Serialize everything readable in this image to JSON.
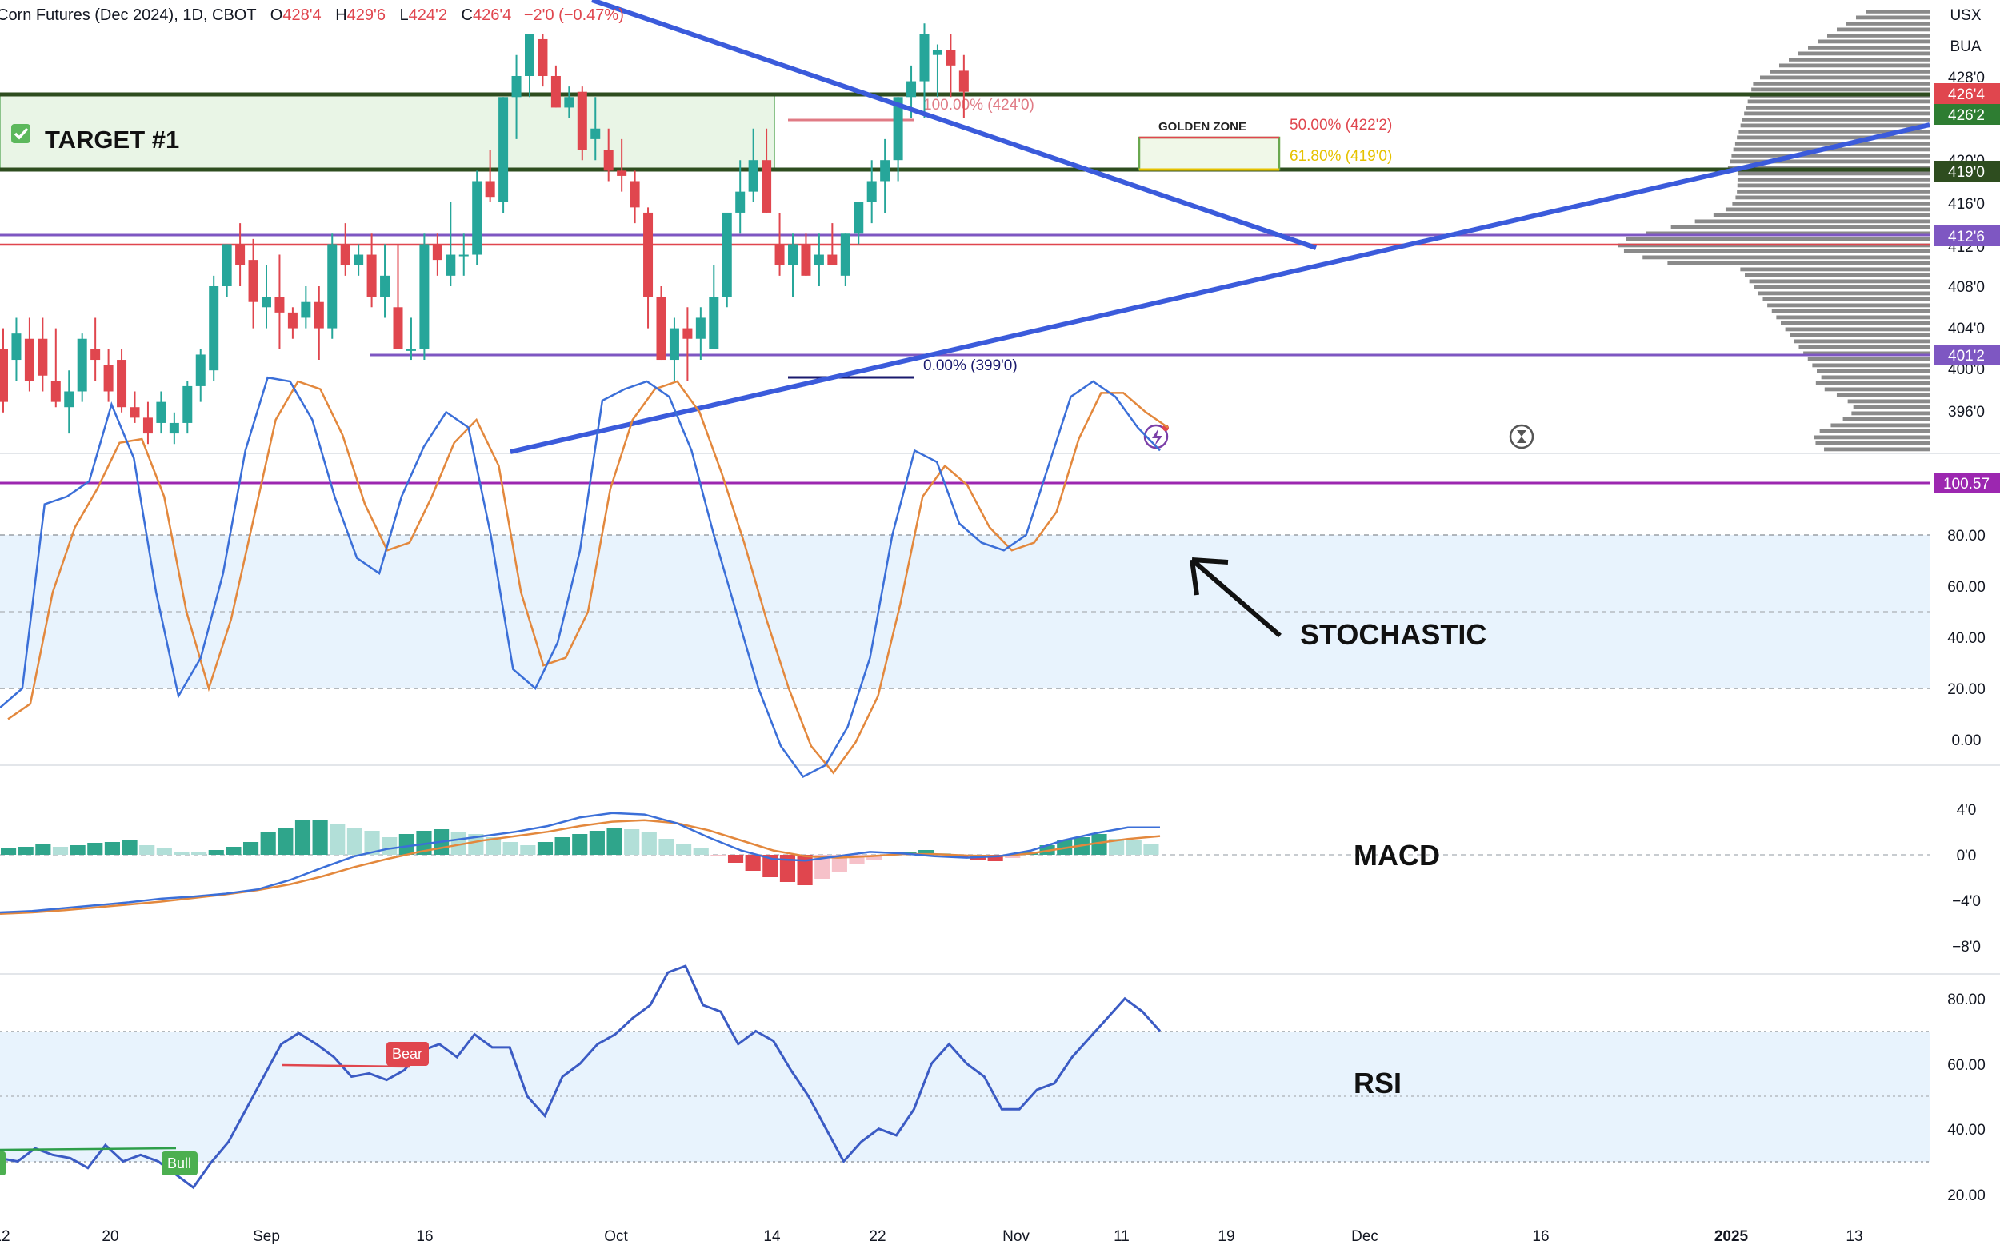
{
  "header": {
    "symbol": "Corn Futures (Dec 2024), 1D, CBOT",
    "o_label": "O",
    "o_val": "428'4",
    "h_label": "H",
    "h_val": "429'6",
    "l_label": "L",
    "l_val": "424'2",
    "c_label": "C",
    "c_val": "426'4",
    "change": "−2'0 (−0.47%)"
  },
  "scale_labels": {
    "currency": "USX",
    "unit": "BUA"
  },
  "price_axis": {
    "ticks": [
      "428'0",
      "420'0",
      "416'0",
      "412'0",
      "408'0",
      "404'0",
      "400'0",
      "396'0"
    ],
    "badges": [
      {
        "text": "426'4",
        "color": "#e0464e"
      },
      {
        "text": "426'2",
        "color": "#2e7d32"
      },
      {
        "text": "419'0",
        "color": "#2e4d1f"
      },
      {
        "text": "412'6",
        "color": "#7e57c2"
      },
      {
        "text": "401'2",
        "color": "#7e57c2"
      }
    ]
  },
  "annotations": {
    "target": "TARGET #1",
    "golden_zone": "GOLDEN ZONE",
    "fib_100": "100.00% (424'0)",
    "fib_50": "50.00% (422'2)",
    "fib_618": "61.80% (419'0)",
    "fib_0": "0.00% (399'0)",
    "stochastic": "STOCHASTIC",
    "macd": "MACD",
    "rsi": "RSI",
    "bear_tag": "Bear",
    "bull_tag": "Bull"
  },
  "stoch_axis": {
    "ticks": [
      "80.00",
      "60.00",
      "40.00",
      "20.00",
      "0.00"
    ],
    "badge": "100.57"
  },
  "macd_axis": {
    "ticks": [
      "4'0",
      "0'0",
      "−4'0",
      "−8'0"
    ]
  },
  "rsi_axis": {
    "ticks": [
      "80.00",
      "60.00",
      "40.00",
      "20.00"
    ]
  },
  "time_axis": {
    "labels": [
      "12",
      "20",
      "Sep",
      "16",
      "Oct",
      "14",
      "22",
      "Nov",
      "11",
      "19",
      "Dec",
      "16",
      "2025",
      "13"
    ]
  },
  "colors": {
    "up": "#26a69a",
    "down": "#e0464e",
    "trendline": "#3b5bdb",
    "green_line": "#2e4d1f",
    "purple_line": "#7e57c2",
    "red_line": "#e0464e",
    "stoch_k": "#3b6fd8",
    "stoch_d": "#e3883d",
    "rsi": "#3b5bc4"
  },
  "icons": [
    "lightning-event-icon",
    "hourglass-icon",
    "checkbox-checked-icon"
  ],
  "chart_data": {
    "type": "candlestick",
    "title": "Corn Futures (Dec 2024), 1D, CBOT",
    "ylim": [
      393,
      432
    ],
    "candles": [
      [
        402,
        404,
        396,
        397
      ],
      [
        401,
        405,
        399,
        403.5
      ],
      [
        403,
        405,
        398,
        399
      ],
      [
        403,
        405,
        398,
        399.5
      ],
      [
        399,
        404,
        396.5,
        397
      ],
      [
        396.5,
        400,
        394,
        398
      ],
      [
        398,
        403.5,
        397,
        403
      ],
      [
        402,
        405,
        399,
        401
      ],
      [
        400.5,
        402,
        397,
        398
      ],
      [
        401,
        402,
        396,
        396.5
      ],
      [
        396.5,
        398,
        395,
        395.5
      ],
      [
        395.5,
        397,
        393,
        394
      ],
      [
        395,
        398,
        394,
        397
      ],
      [
        394,
        396,
        393,
        395
      ],
      [
        395,
        399,
        394,
        398.5
      ],
      [
        398.5,
        402,
        397,
        401.5
      ],
      [
        400,
        409,
        399,
        408
      ],
      [
        408,
        412,
        407,
        412
      ],
      [
        412,
        414,
        408,
        410
      ],
      [
        410.5,
        412.5,
        404,
        406.5
      ],
      [
        406,
        410,
        404,
        407
      ],
      [
        407,
        411,
        402,
        405.5
      ],
      [
        405.5,
        406,
        403,
        404
      ],
      [
        405,
        408,
        404,
        406.5
      ],
      [
        406.5,
        408,
        401,
        404
      ],
      [
        404,
        413,
        403,
        412
      ],
      [
        412,
        414,
        409,
        410
      ],
      [
        410,
        412,
        409,
        411
      ],
      [
        411,
        413,
        406,
        407
      ],
      [
        407,
        412,
        405,
        409
      ],
      [
        406,
        412,
        402,
        402
      ],
      [
        402,
        405,
        401,
        402
      ],
      [
        402,
        413,
        401,
        412
      ],
      [
        412,
        413,
        409,
        410.5
      ],
      [
        409,
        416,
        408,
        411
      ],
      [
        411,
        413,
        409,
        411
      ],
      [
        411,
        419,
        410,
        418
      ],
      [
        418,
        421,
        416,
        416.5
      ],
      [
        416,
        426,
        415,
        426
      ],
      [
        426,
        430,
        422,
        428
      ],
      [
        428,
        432,
        426,
        432
      ],
      [
        431.5,
        432,
        427,
        428
      ],
      [
        428,
        429,
        425,
        425
      ],
      [
        425,
        427,
        424,
        426
      ],
      [
        426.5,
        427,
        420,
        421
      ],
      [
        422,
        426,
        420,
        423
      ],
      [
        421,
        423,
        418,
        419
      ],
      [
        419,
        422,
        417,
        418.5
      ],
      [
        418,
        419,
        414,
        415.5
      ],
      [
        415,
        415.5,
        404,
        407
      ],
      [
        407,
        408,
        401,
        401
      ],
      [
        401,
        405,
        399,
        404
      ],
      [
        404,
        406,
        399,
        403
      ],
      [
        403,
        406,
        401,
        405
      ],
      [
        402,
        410,
        402,
        407
      ],
      [
        407,
        415,
        406,
        415
      ],
      [
        415,
        420,
        413,
        417
      ],
      [
        417,
        423,
        416,
        420
      ],
      [
        420,
        423,
        415,
        415
      ],
      [
        412,
        415,
        409,
        410
      ],
      [
        410,
        413,
        407,
        412
      ],
      [
        412,
        413,
        409,
        409
      ],
      [
        410,
        413,
        408,
        411
      ],
      [
        411,
        414,
        410,
        410
      ],
      [
        409,
        413,
        408,
        413
      ],
      [
        413,
        416,
        412,
        416
      ],
      [
        416,
        420,
        414,
        418
      ],
      [
        418,
        422,
        415,
        420
      ],
      [
        420,
        426,
        418,
        426
      ],
      [
        426,
        429,
        424,
        427.5
      ],
      [
        427.5,
        433,
        424,
        432
      ],
      [
        430,
        431,
        426,
        430.5
      ],
      [
        430.5,
        432,
        426,
        429
      ],
      [
        428.5,
        430,
        424,
        426.5
      ]
    ]
  }
}
